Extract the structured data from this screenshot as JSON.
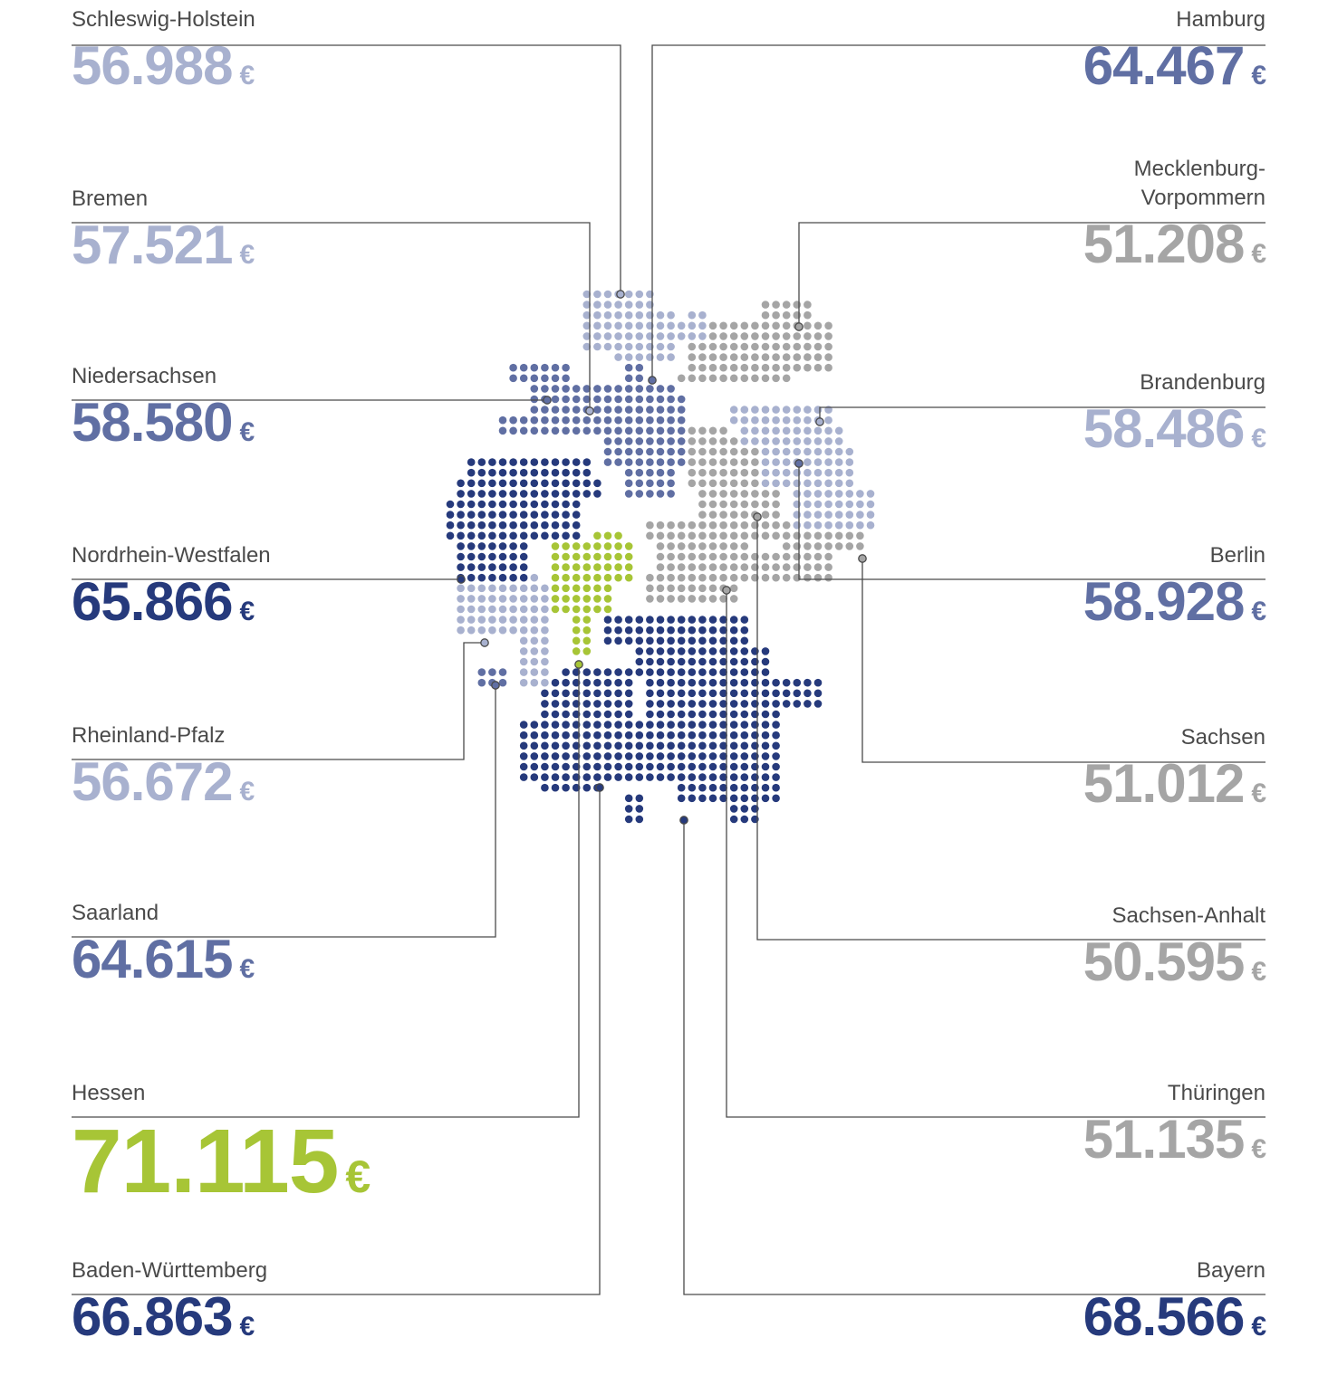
{
  "colors": {
    "dark_blue": "#263a7c",
    "mid_blue": "#606fa3",
    "light_blue": "#a8b1cf",
    "gray": "#a5a5a5",
    "green": "#a7c536",
    "line": "#4a4a4a",
    "label": "#4a4a4a"
  },
  "currency_symbol": "€",
  "states": [
    {
      "id": "schleswig-holstein",
      "name": "Schleswig-Holstein",
      "value": "56.988",
      "color": "#a8b1cf"
    },
    {
      "id": "bremen",
      "name": "Bremen",
      "value": "57.521",
      "color": "#a8b1cf"
    },
    {
      "id": "niedersachsen",
      "name": "Niedersachsen",
      "value": "58.580",
      "color": "#606fa3"
    },
    {
      "id": "nordrhein-westfalen",
      "name": "Nordrhein-Westfalen",
      "value": "65.866",
      "color": "#263a7c"
    },
    {
      "id": "rheinland-pfalz",
      "name": "Rheinland-Pfalz",
      "value": "56.672",
      "color": "#a8b1cf"
    },
    {
      "id": "saarland",
      "name": "Saarland",
      "value": "64.615",
      "color": "#606fa3"
    },
    {
      "id": "hessen",
      "name": "Hessen",
      "value": "71.115",
      "color": "#a7c536"
    },
    {
      "id": "baden-wuerttemberg",
      "name": "Baden-Württemberg",
      "value": "66.863",
      "color": "#263a7c"
    },
    {
      "id": "hamburg",
      "name": "Hamburg",
      "value": "64.467",
      "color": "#606fa3"
    },
    {
      "id": "mecklenburg-vorpommern",
      "name": "Mecklenburg-\nVorpommern",
      "value": "51.208",
      "color": "#a5a5a5"
    },
    {
      "id": "brandenburg",
      "name": "Brandenburg",
      "value": "58.486",
      "color": "#a8b1cf"
    },
    {
      "id": "berlin",
      "name": "Berlin",
      "value": "58.928",
      "color": "#606fa3"
    },
    {
      "id": "sachsen",
      "name": "Sachsen",
      "value": "51.012",
      "color": "#a5a5a5"
    },
    {
      "id": "sachsen-anhalt",
      "name": "Sachsen-Anhalt",
      "value": "50.595",
      "color": "#a5a5a5"
    },
    {
      "id": "thueringen",
      "name": "Thüringen",
      "value": "51.135",
      "color": "#a5a5a5"
    },
    {
      "id": "bayern",
      "name": "Bayern",
      "value": "68.566",
      "color": "#263a7c"
    }
  ]
}
